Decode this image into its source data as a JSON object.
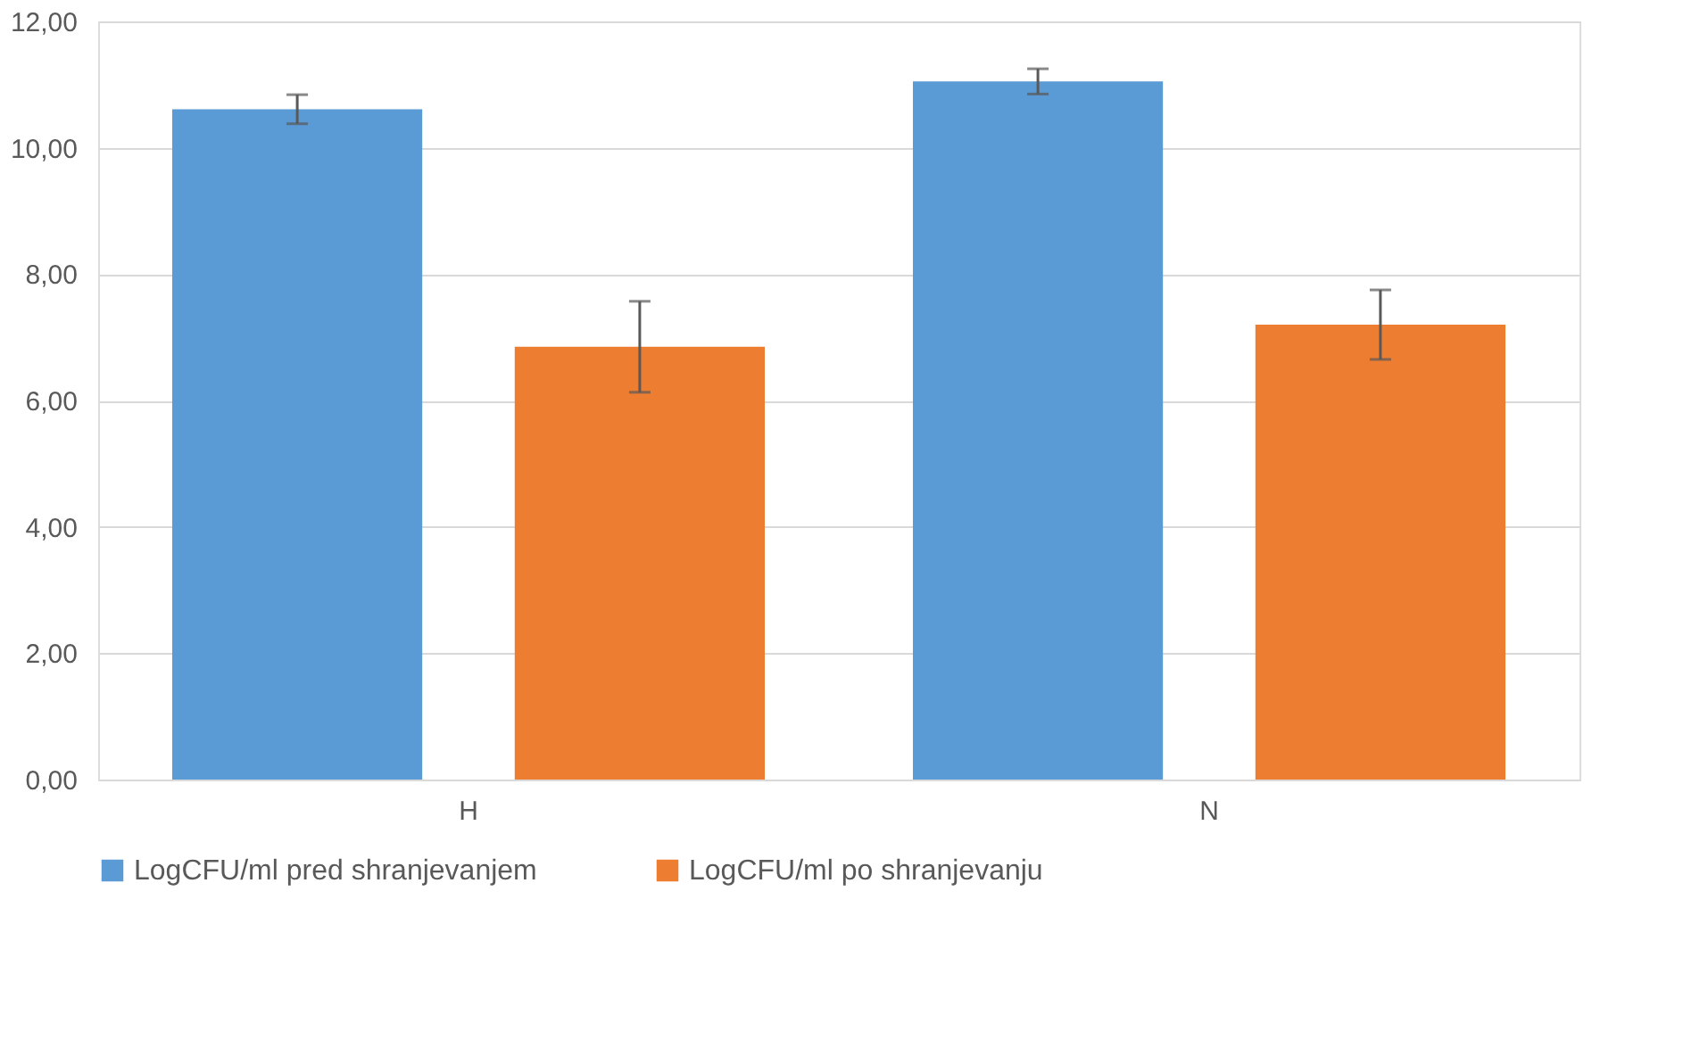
{
  "chart_data": {
    "type": "bar",
    "categories": [
      "H",
      "N"
    ],
    "series": [
      {
        "name": "LogCFU/ml  pred shranjevanjem",
        "color": "#5b9bd5",
        "values": [
          10.61,
          11.05
        ],
        "errors": [
          0.23,
          0.2
        ]
      },
      {
        "name": "LogCFU/ml  po shranjevanju",
        "color": "#ed7d31",
        "values": [
          6.85,
          7.2
        ],
        "errors": [
          0.72,
          0.55
        ]
      }
    ],
    "ylim": [
      0,
      12
    ],
    "yticks": [
      {
        "value": 0,
        "label": "0,00"
      },
      {
        "value": 2,
        "label": "2,00"
      },
      {
        "value": 4,
        "label": "4,00"
      },
      {
        "value": 6,
        "label": "6,00"
      },
      {
        "value": 8,
        "label": "8,00"
      },
      {
        "value": 10,
        "label": "10,00"
      },
      {
        "value": 12,
        "label": "12,00"
      }
    ],
    "grid": "y",
    "legend": "bottom"
  }
}
